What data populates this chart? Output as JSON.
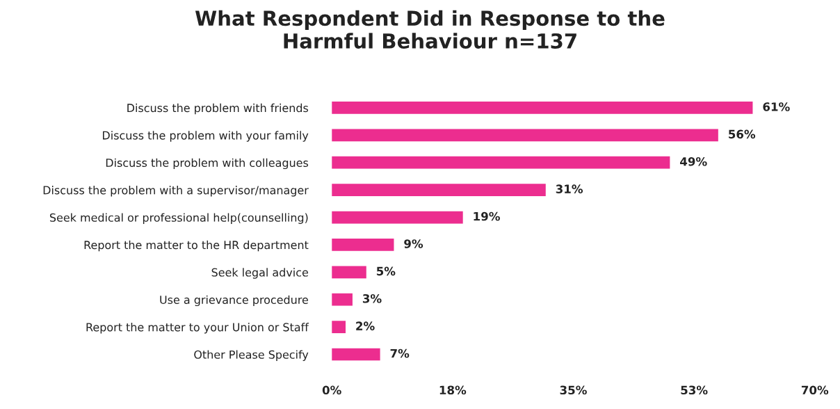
{
  "chart_data": {
    "type": "bar",
    "orientation": "horizontal",
    "title": "What Respondent Did in Response to the\nHarmful Behaviour n=137",
    "categories": [
      "Discuss the problem with friends",
      "Discuss the problem with your family",
      "Discuss the problem with colleagues",
      "Discuss the problem with a supervisor/manager",
      "Seek medical or professional help(counselling)",
      "Report the matter to the HR department",
      "Seek legal advice",
      "Use a grievance procedure",
      "Report the matter to your Union or Staff",
      "Other Please Specify"
    ],
    "values": [
      61,
      56,
      49,
      31,
      19,
      9,
      5,
      3,
      2,
      7
    ],
    "value_labels": [
      "61%",
      "56%",
      "49%",
      "31%",
      "19%",
      "9%",
      "5%",
      "3%",
      "2%",
      "7%"
    ],
    "color": "#ec2d8f",
    "xlim": [
      0,
      70
    ],
    "xticks": [
      {
        "value": 0,
        "label": "0%"
      },
      {
        "value": 17.5,
        "label": "18%"
      },
      {
        "value": 35,
        "label": "35%"
      },
      {
        "value": 52.5,
        "label": "53%"
      },
      {
        "value": 70,
        "label": "70%"
      }
    ],
    "grid": false,
    "legend": false
  }
}
